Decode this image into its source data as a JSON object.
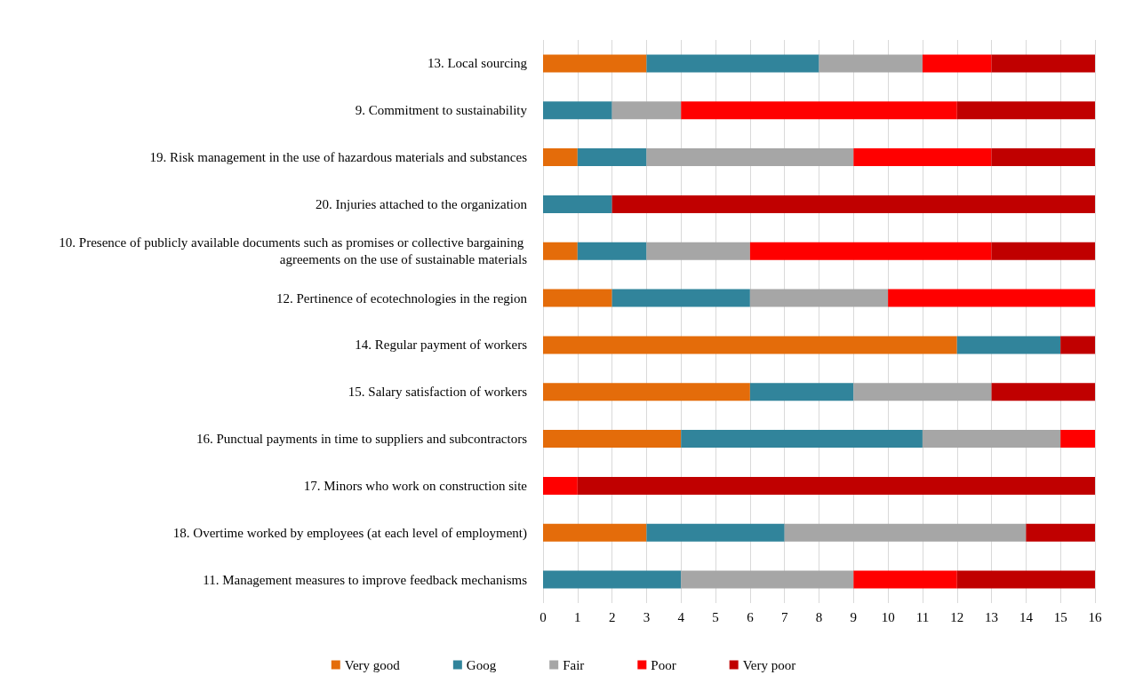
{
  "chart_data": {
    "type": "bar",
    "orientation": "horizontal",
    "stacked": true,
    "categories": [
      "13. Local sourcing",
      "9. Commitment to sustainability",
      "19. Risk management in the use of hazardous materials and substances",
      "20. Injuries attached to the organization",
      "10. Presence of publicly available documents such as promises or collective bargaining agreements on the use of sustainable materials",
      "12. Pertinence of ecotechnologies in the region",
      "14. Regular payment of workers",
      "15. Salary satisfaction of workers",
      "16. Punctual payments in time to suppliers and subcontractors",
      "17. Minors who work on construction site",
      "18. Overtime worked by employees (at each level of employment)",
      "11. Management measures to improve feedback mechanisms"
    ],
    "series": [
      {
        "name": "Very good",
        "color": "#e46c0a",
        "values": [
          3,
          0,
          1,
          0,
          1,
          2,
          12,
          6,
          4,
          0,
          3,
          0
        ]
      },
      {
        "name": "Goog",
        "color": "#31849b",
        "values": [
          5,
          2,
          2,
          2,
          2,
          4,
          3,
          3,
          7,
          0,
          4,
          4
        ]
      },
      {
        "name": "Fair",
        "color": "#a6a6a6",
        "values": [
          3,
          2,
          6,
          0,
          3,
          4,
          0,
          4,
          4,
          0,
          7,
          5
        ]
      },
      {
        "name": "Poor",
        "color": "#ff0000",
        "values": [
          2,
          8,
          4,
          0,
          7,
          6,
          0,
          0,
          1,
          1,
          0,
          3
        ]
      },
      {
        "name": "Very poor",
        "color": "#c00000",
        "values": [
          3,
          4,
          3,
          14,
          3,
          0,
          1,
          3,
          0,
          15,
          2,
          4
        ]
      }
    ],
    "xlim": [
      0,
      16
    ],
    "xticks": [
      0,
      1,
      2,
      3,
      4,
      5,
      6,
      7,
      8,
      9,
      10,
      11,
      12,
      13,
      14,
      15,
      16
    ],
    "grid": "x",
    "legend": "bottom"
  }
}
